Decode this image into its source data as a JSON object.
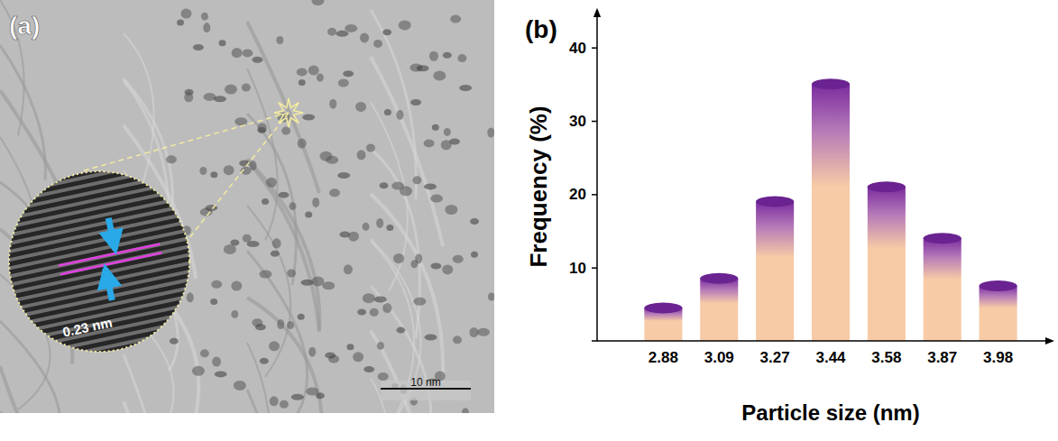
{
  "chart_data": {
    "type": "bar",
    "panel_label": "(b)",
    "categories": [
      "2.88",
      "3.09",
      "3.27",
      "3.44",
      "3.58",
      "3.87",
      "3.98"
    ],
    "values": [
      4.5,
      8.5,
      19,
      35,
      21,
      14,
      7.5
    ],
    "color": "#f7cba6",
    "x_label": "Particle size (nm)",
    "y_label": "Frequency (%)",
    "ylim": [
      0,
      45
    ],
    "yticks": [
      10,
      20,
      30,
      40
    ],
    "grid": false
  },
  "micrograph": {
    "panel_label": "(a)",
    "lattice_spacing_label": "0.23 nm",
    "scale_bar_label": "10 nm"
  }
}
